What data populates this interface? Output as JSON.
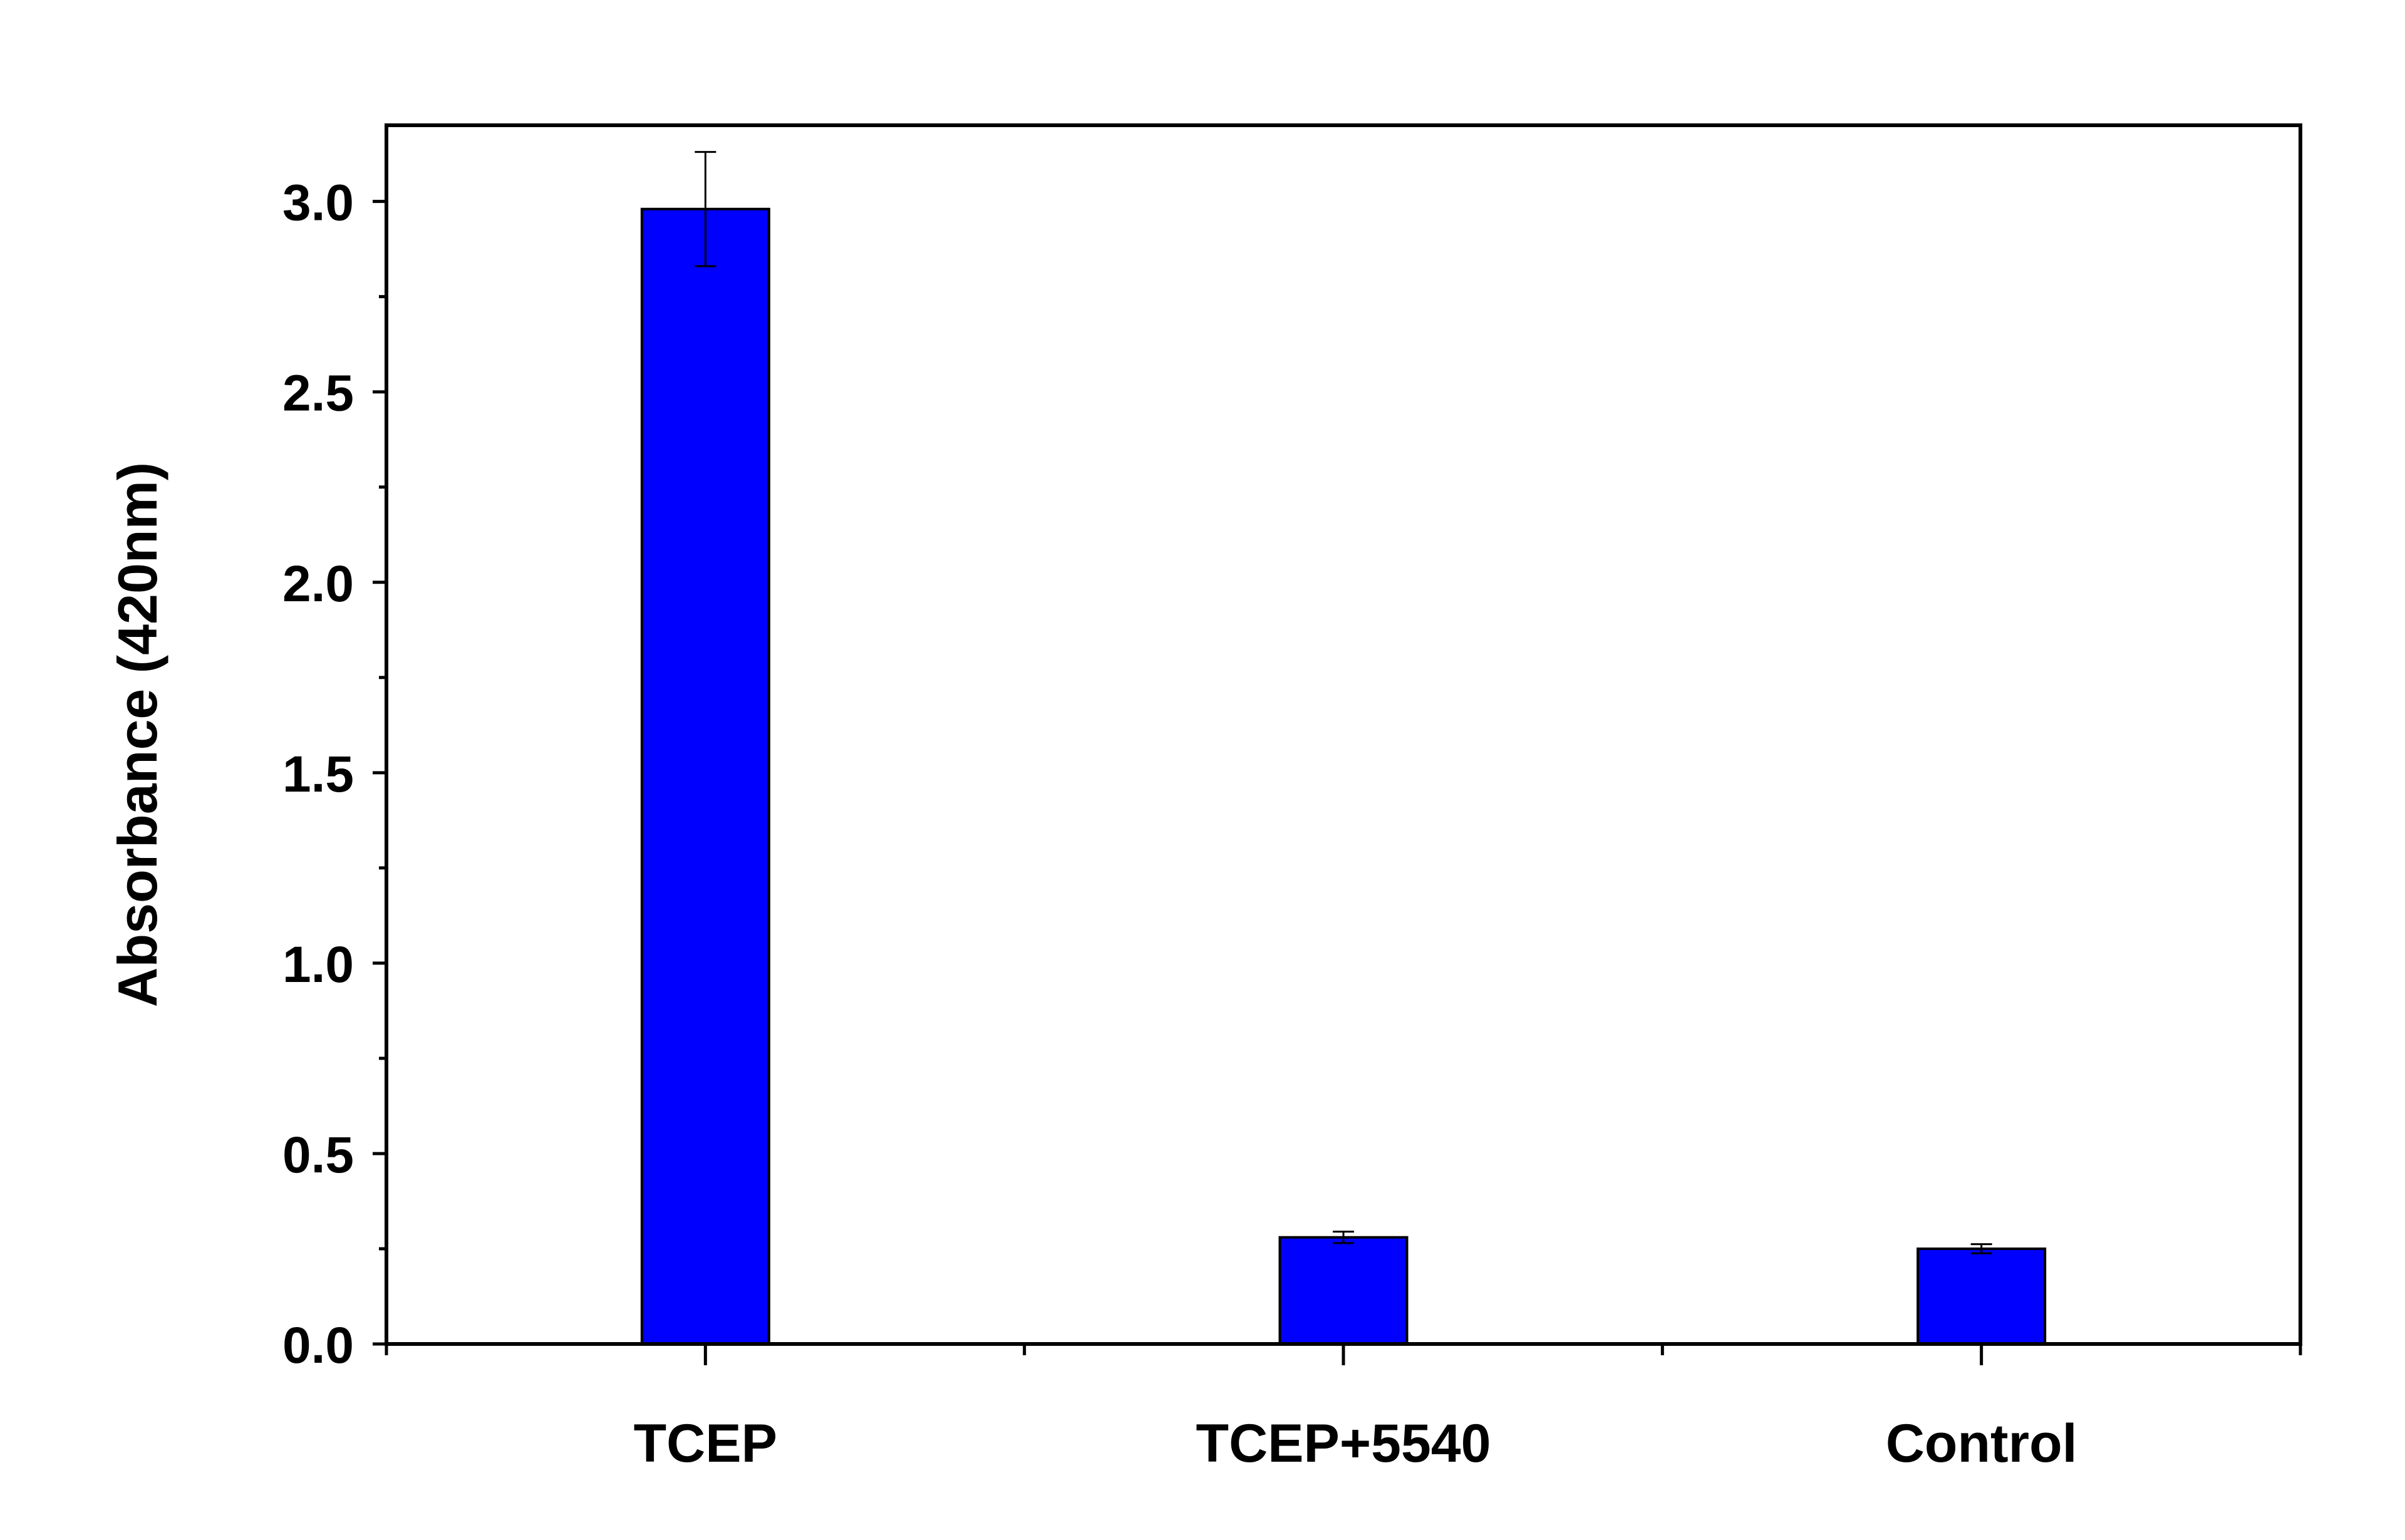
{
  "chart_data": {
    "type": "bar",
    "categories": [
      "TCEP",
      "TCEP+5540",
      "Control"
    ],
    "values": [
      2.98,
      0.28,
      0.25
    ],
    "errors": [
      0.15,
      0.015,
      0.012
    ],
    "title": "",
    "xlabel": "",
    "ylabel": "Absorbance (420nm)",
    "ylim": [
      0,
      3.2
    ],
    "yticks": [
      0.0,
      0.5,
      1.0,
      1.5,
      2.0,
      2.5,
      3.0
    ],
    "ytick_labels": [
      "0.0",
      "0.5",
      "1.0",
      "1.5",
      "2.0",
      "2.5",
      "3.0"
    ],
    "bar_color": "#0000FF",
    "grid": false
  }
}
